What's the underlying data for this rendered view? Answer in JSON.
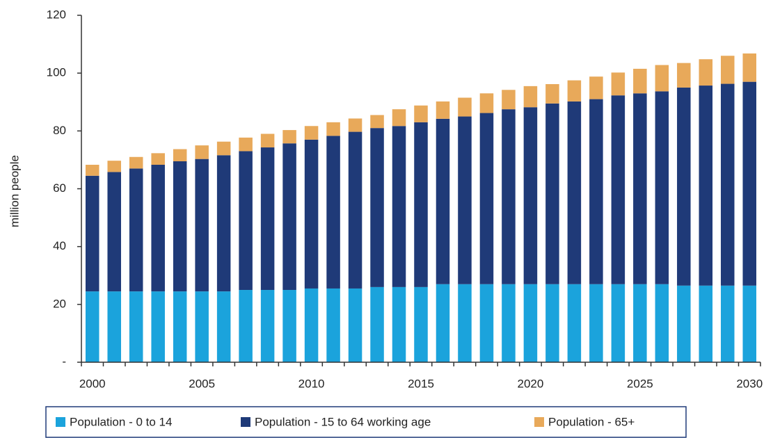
{
  "chart_data": {
    "type": "stacked_bar",
    "y_label": "million people",
    "categories": [
      "2000",
      null,
      null,
      null,
      null,
      "2005",
      null,
      null,
      null,
      null,
      "2010",
      null,
      null,
      null,
      null,
      "2015",
      null,
      null,
      null,
      null,
      "2020",
      null,
      null,
      null,
      null,
      "2025",
      null,
      null,
      null,
      null,
      "2030"
    ],
    "series": [
      {
        "name": "Population - 0 to 14",
        "color": "#1ba3dc",
        "values": [
          24.5,
          24.5,
          24.5,
          24.5,
          24.5,
          24.5,
          24.5,
          25,
          25,
          25,
          25.5,
          25.5,
          25.5,
          26,
          26,
          26,
          27,
          27,
          27,
          27,
          27,
          27,
          27,
          27,
          27,
          27,
          27,
          26.5,
          26.5,
          26.5,
          26.5
        ]
      },
      {
        "name": "Population - 15 to 64 working age",
        "color": "#1f3a78",
        "values": [
          40,
          41.3,
          42.5,
          43.8,
          45,
          45.8,
          47.1,
          48,
          49.3,
          50.7,
          51.5,
          52.8,
          54.2,
          55,
          55.7,
          57,
          57.2,
          58,
          59.2,
          60.5,
          61.2,
          62.5,
          63.2,
          64,
          65.3,
          66,
          66.7,
          68.5,
          69.2,
          69.8,
          70.5
        ]
      },
      {
        "name": "Population - 65+",
        "color": "#e8a95a",
        "values": [
          3.8,
          3.9,
          4,
          4,
          4.2,
          4.7,
          4.7,
          4.7,
          4.7,
          4.6,
          4.7,
          4.7,
          4.6,
          4.5,
          5.8,
          5.8,
          6,
          6.5,
          6.8,
          6.7,
          7.3,
          6.7,
          7.3,
          7.8,
          7.9,
          8.5,
          9.1,
          8.5,
          9.1,
          9.7,
          9.8
        ]
      }
    ],
    "ylim": [
      0,
      120
    ],
    "yticks": [
      {
        "value": 0,
        "label": "-"
      },
      20,
      40,
      60,
      80,
      100,
      120
    ],
    "legend": "bottom"
  }
}
